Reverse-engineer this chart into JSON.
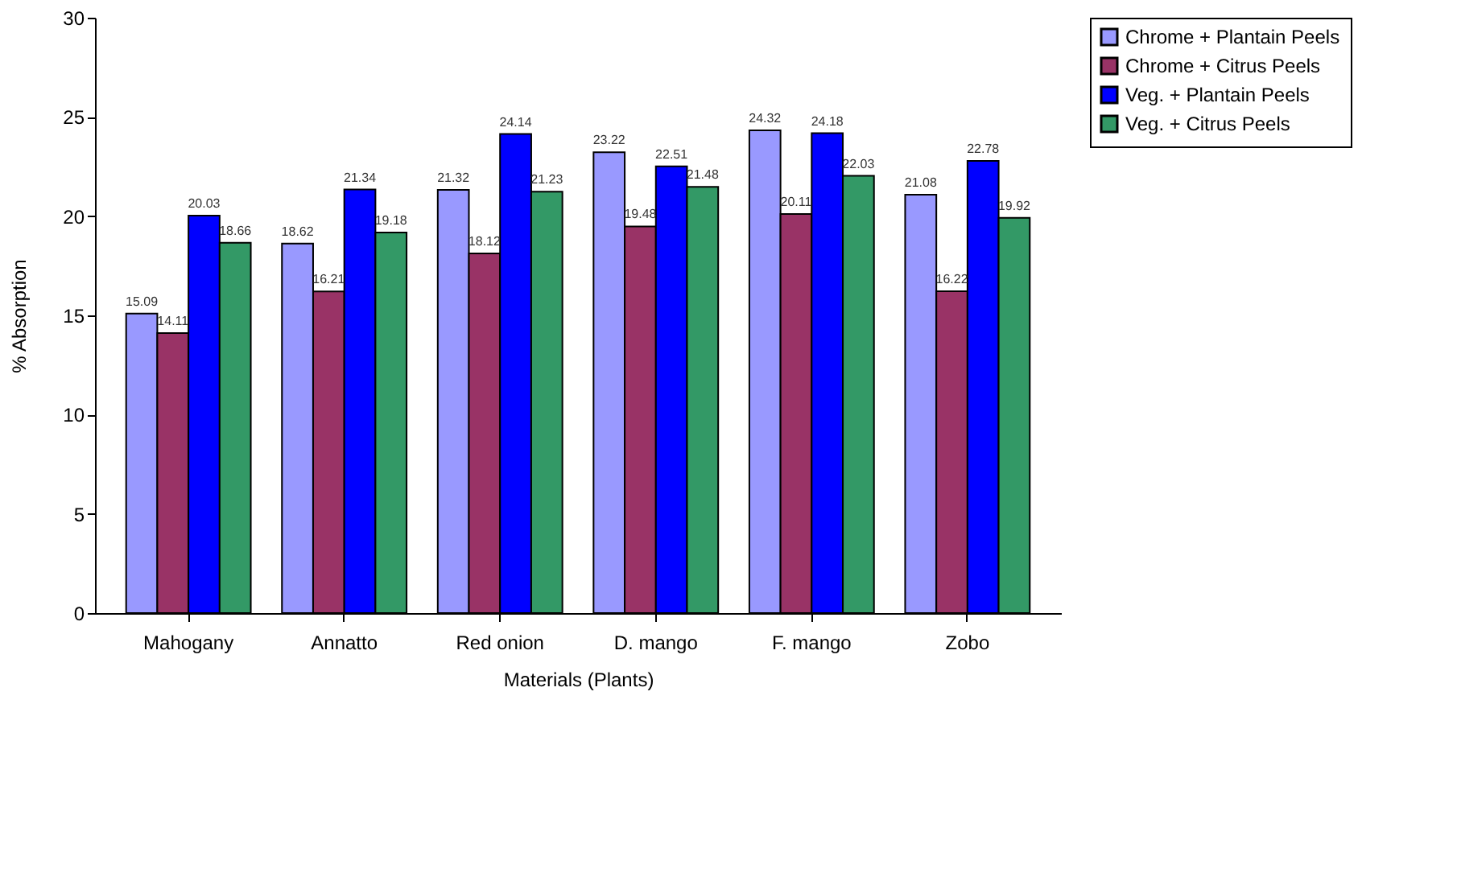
{
  "chart_data": {
    "type": "bar",
    "xlabel": "Materials (Plants)",
    "ylabel": "% Absorption",
    "categories": [
      "Mahogany",
      "Annatto",
      "Red onion",
      "D. mango",
      "F. mango",
      "Zobo"
    ],
    "series": [
      {
        "name": "Chrome + Plantain Peels",
        "color": "#9999ff",
        "values": [
          15.09,
          18.62,
          21.32,
          23.22,
          24.32,
          21.08
        ]
      },
      {
        "name": "Chrome + Citrus Peels",
        "color": "#993366",
        "values": [
          14.11,
          16.21,
          18.12,
          19.48,
          20.11,
          16.22
        ]
      },
      {
        "name": "Veg. + Plantain Peels",
        "color": "#0000ff",
        "values": [
          20.03,
          21.34,
          24.14,
          22.51,
          24.18,
          22.78
        ]
      },
      {
        "name": "Veg. + Citrus Peels",
        "color": "#339966",
        "values": [
          18.66,
          19.18,
          21.23,
          21.48,
          22.03,
          19.92
        ]
      }
    ],
    "ylim": [
      0,
      30
    ],
    "yticks": [
      0,
      5,
      10,
      15,
      20,
      25,
      30
    ],
    "grid": false,
    "legend": "top right",
    "data_labels": true
  }
}
